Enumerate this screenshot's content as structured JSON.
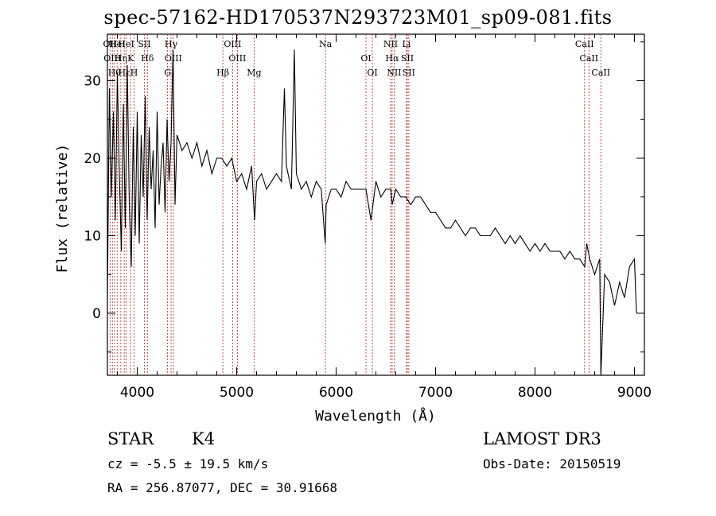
{
  "header": {
    "title": "spec-57162-HD170537N293723M01_sp09-081.fits"
  },
  "info": {
    "class": "STAR",
    "subclass": "K4",
    "survey": "LAMOST DR3",
    "cz": "cz = -5.5 ± 19.5 km/s",
    "obs_date": "Obs-Date: 20150519",
    "radec": "RA = 256.87077, DEC =  30.91668"
  },
  "chart_data": {
    "type": "line",
    "title": "spec-57162-HD170537N293723M01_sp09-081.fits",
    "xlabel": "Wavelength (Å)",
    "ylabel": "Flux (relative)",
    "xlim": [
      3700,
      9100
    ],
    "ylim": [
      -8,
      36
    ],
    "xticks": [
      4000,
      5000,
      6000,
      7000,
      8000,
      9000
    ],
    "yticks": [
      0,
      10,
      20,
      30
    ],
    "series": [
      {
        "name": "flux",
        "x": [
          3700,
          3720,
          3740,
          3760,
          3780,
          3800,
          3820,
          3840,
          3860,
          3880,
          3900,
          3920,
          3940,
          3960,
          3980,
          4000,
          4020,
          4040,
          4060,
          4080,
          4100,
          4120,
          4140,
          4160,
          4180,
          4200,
          4220,
          4240,
          4260,
          4280,
          4300,
          4320,
          4340,
          4360,
          4380,
          4400,
          4450,
          4500,
          4550,
          4600,
          4650,
          4700,
          4750,
          4800,
          4850,
          4900,
          4950,
          5000,
          5050,
          5100,
          5150,
          5180,
          5200,
          5250,
          5300,
          5350,
          5400,
          5450,
          5480,
          5500,
          5550,
          5580,
          5600,
          5650,
          5700,
          5750,
          5800,
          5850,
          5890,
          5900,
          5950,
          6000,
          6050,
          6100,
          6150,
          6200,
          6250,
          6300,
          6350,
          6400,
          6450,
          6500,
          6550,
          6563,
          6600,
          6650,
          6700,
          6750,
          6800,
          6850,
          6900,
          6950,
          7000,
          7050,
          7100,
          7150,
          7200,
          7250,
          7300,
          7350,
          7400,
          7450,
          7500,
          7550,
          7600,
          7650,
          7700,
          7750,
          7800,
          7850,
          7900,
          7950,
          8000,
          8050,
          8100,
          8150,
          8200,
          8250,
          8300,
          8350,
          8400,
          8450,
          8500,
          8520,
          8550,
          8600,
          8650,
          8662,
          8700,
          8750,
          8800,
          8850,
          8900,
          8950,
          9000,
          9020
        ],
        "y": [
          2,
          29,
          15,
          26,
          12,
          31,
          18,
          8,
          27,
          11,
          32,
          14,
          6,
          24,
          10,
          26,
          9,
          23,
          15,
          28,
          12,
          24,
          16,
          21,
          11,
          26,
          14,
          19,
          22,
          13,
          25,
          17,
          22,
          34,
          14,
          23,
          21,
          22,
          20,
          22,
          19,
          21,
          18,
          20,
          20,
          19,
          20,
          17,
          18,
          16,
          19,
          12,
          17,
          18,
          16,
          17,
          18,
          17,
          29,
          19,
          16,
          34,
          18,
          16,
          17,
          15,
          17,
          16,
          9,
          14,
          16,
          16,
          15,
          17,
          16,
          16,
          16,
          16,
          12,
          17,
          15,
          16,
          16,
          14,
          16,
          15,
          15,
          14,
          15,
          15,
          14,
          13,
          13,
          12,
          11,
          11,
          12,
          11,
          10,
          11,
          11,
          10,
          10,
          10,
          11,
          10,
          9,
          10,
          9,
          10,
          9,
          8,
          9,
          8,
          9,
          8,
          8,
          8,
          7,
          8,
          7,
          7,
          6,
          9,
          7,
          5,
          7,
          -8,
          5,
          4,
          1,
          4,
          2,
          6,
          7,
          0
        ]
      }
    ],
    "lines": [
      {
        "wave": 3727,
        "label": "OII"
      },
      {
        "wave": 3750,
        "label": "OIII"
      },
      {
        "wave": 3771,
        "label": "Hθ"
      },
      {
        "wave": 3798,
        "label": "HeI"
      },
      {
        "wave": 3835,
        "label": "Hη"
      },
      {
        "wave": 3869,
        "label": "Hε"
      },
      {
        "wave": 3889,
        "label": "HeI"
      },
      {
        "wave": 3934,
        "label": "K"
      },
      {
        "wave": 3968,
        "label": "H"
      },
      {
        "wave": 4072,
        "label": "SII"
      },
      {
        "wave": 4102,
        "label": "Hδ"
      },
      {
        "wave": 4305,
        "label": "G"
      },
      {
        "wave": 4340,
        "label": "Hγ"
      },
      {
        "wave": 4363,
        "label": "OIII"
      },
      {
        "wave": 4861,
        "label": "Hβ"
      },
      {
        "wave": 4959,
        "label": "OIII"
      },
      {
        "wave": 5007,
        "label": "OIII"
      },
      {
        "wave": 5175,
        "label": "Mg"
      },
      {
        "wave": 5893,
        "label": "Na"
      },
      {
        "wave": 6300,
        "label": "OI"
      },
      {
        "wave": 6364,
        "label": "OI"
      },
      {
        "wave": 6548,
        "label": "NII"
      },
      {
        "wave": 6563,
        "label": "Hα"
      },
      {
        "wave": 6583,
        "label": "NII"
      },
      {
        "wave": 6707,
        "label": "Li"
      },
      {
        "wave": 6716,
        "label": "SII"
      },
      {
        "wave": 6731,
        "label": "SII"
      },
      {
        "wave": 8498,
        "label": "CaII"
      },
      {
        "wave": 8542,
        "label": "CaII"
      },
      {
        "wave": 8662,
        "label": "CaII"
      }
    ]
  }
}
